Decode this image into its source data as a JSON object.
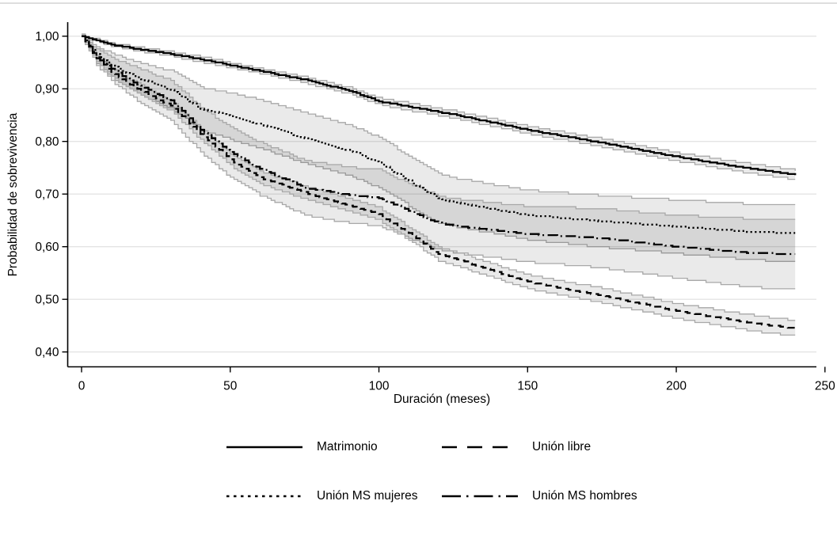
{
  "figure": {
    "y_axis_title": "Probabilidad de sobrevivencia",
    "x_axis_title": "Duración (meses)"
  },
  "chart_data": {
    "type": "line",
    "subtype": "kaplan-meier-survival-curves",
    "title": "",
    "xlabel": "Duración (meses)",
    "ylabel": "Probabilidad de sobrevivencia",
    "xlim": [
      0,
      250
    ],
    "ylim": [
      0.4,
      1.0
    ],
    "grid": "horizontal",
    "legend_position": "bottom",
    "xticks": [
      {
        "value": 0,
        "label": "0"
      },
      {
        "value": 50,
        "label": "50"
      },
      {
        "value": 100,
        "label": "100"
      },
      {
        "value": 150,
        "label": "150"
      },
      {
        "value": 200,
        "label": "200"
      },
      {
        "value": 250,
        "label": "250"
      }
    ],
    "yticks": [
      {
        "value": 1.0,
        "label": "1,00"
      },
      {
        "value": 0.9,
        "label": "0,90"
      },
      {
        "value": 0.8,
        "label": "0,80"
      },
      {
        "value": 0.7,
        "label": "0,70"
      },
      {
        "value": 0.6,
        "label": "0,60"
      },
      {
        "value": 0.5,
        "label": "0,50"
      },
      {
        "value": 0.4,
        "label": "0,40"
      }
    ],
    "months": [
      0,
      5,
      10,
      15,
      20,
      25,
      30,
      40,
      50,
      60,
      75,
      90,
      100,
      110,
      120,
      125,
      150,
      175,
      200,
      225,
      240
    ],
    "series": [
      {
        "name": "Matrimonio",
        "style": "solid",
        "values": [
          1.0,
          0.992,
          0.984,
          0.979,
          0.974,
          0.97,
          0.966,
          0.956,
          0.945,
          0.934,
          0.917,
          0.896,
          0.876,
          0.866,
          0.856,
          0.851,
          0.822,
          0.797,
          0.771,
          0.748,
          0.736
        ],
        "ci_delta": [
          0.001,
          0.002,
          0.003,
          0.003,
          0.004,
          0.004,
          0.004,
          0.005,
          0.005,
          0.005,
          0.006,
          0.006,
          0.006,
          0.007,
          0.007,
          0.007,
          0.007,
          0.008,
          0.008,
          0.009,
          0.009
        ]
      },
      {
        "name": "Unión libre",
        "style": "dashed",
        "values": [
          1.0,
          0.958,
          0.932,
          0.912,
          0.897,
          0.881,
          0.868,
          0.814,
          0.765,
          0.731,
          0.703,
          0.678,
          0.662,
          0.625,
          0.586,
          0.578,
          0.533,
          0.507,
          0.478,
          0.455,
          0.445
        ],
        "ci_delta": [
          0.001,
          0.006,
          0.008,
          0.009,
          0.01,
          0.01,
          0.01,
          0.011,
          0.011,
          0.012,
          0.012,
          0.012,
          0.012,
          0.012,
          0.013,
          0.013,
          0.013,
          0.014,
          0.014,
          0.015,
          0.015
        ]
      },
      {
        "name": "Unión MS mujeres",
        "style": "dotted",
        "values": [
          1.0,
          0.965,
          0.945,
          0.93,
          0.918,
          0.908,
          0.898,
          0.862,
          0.848,
          0.833,
          0.806,
          0.783,
          0.76,
          0.725,
          0.692,
          0.685,
          0.66,
          0.648,
          0.638,
          0.628,
          0.626
        ],
        "ci_delta": [
          0.002,
          0.015,
          0.022,
          0.027,
          0.03,
          0.033,
          0.036,
          0.04,
          0.044,
          0.046,
          0.048,
          0.048,
          0.048,
          0.047,
          0.046,
          0.046,
          0.047,
          0.049,
          0.051,
          0.053,
          0.054
        ]
      },
      {
        "name": "Unión MS hombres",
        "style": "dashdot",
        "values": [
          1.0,
          0.96,
          0.938,
          0.92,
          0.905,
          0.89,
          0.878,
          0.822,
          0.779,
          0.748,
          0.712,
          0.698,
          0.693,
          0.668,
          0.645,
          0.64,
          0.624,
          0.616,
          0.6,
          0.588,
          0.586
        ],
        "ci_delta": [
          0.002,
          0.015,
          0.022,
          0.028,
          0.032,
          0.035,
          0.038,
          0.043,
          0.047,
          0.05,
          0.052,
          0.053,
          0.053,
          0.052,
          0.051,
          0.051,
          0.053,
          0.056,
          0.06,
          0.065,
          0.068
        ]
      }
    ],
    "legend_rows": [
      [
        0,
        1
      ],
      [
        2,
        3
      ]
    ],
    "colors": {
      "line": "#000000",
      "band_fill": "#e9e9e9",
      "band_fill_alpha": "rgba(0,0,0,0.082)",
      "band_edge": "#a8a8a8",
      "grid": "#e4e4e4",
      "axis": "#000000",
      "top_rule": "#dedede"
    }
  }
}
